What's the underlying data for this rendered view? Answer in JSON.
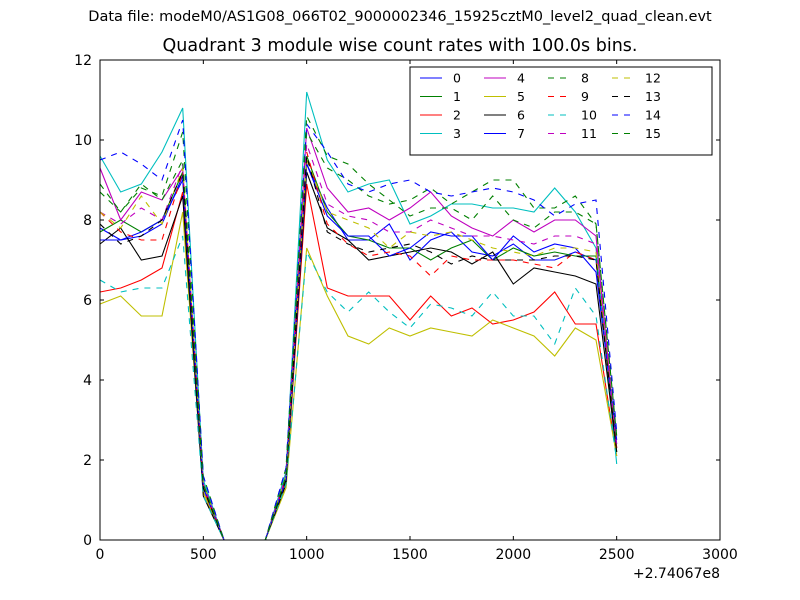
{
  "header": {
    "data_file": "Data file: modeM0/AS1G08_066T02_9000002346_15925cztM0_level2_quad_clean.evt",
    "title": "Quadrant 3 module wise count rates with 100.0s bins."
  },
  "chart_data": {
    "type": "line",
    "title": "Quadrant 3 module wise count rates with 100.0s bins.",
    "xlabel": "",
    "ylabel": "",
    "x_offset_label": "+2.74067e8",
    "xlim": [
      0,
      3000
    ],
    "ylim": [
      0,
      12
    ],
    "xticks": [
      0,
      500,
      1000,
      1500,
      2000,
      2500,
      3000
    ],
    "yticks": [
      0,
      2,
      4,
      6,
      8,
      10,
      12
    ],
    "grid": false,
    "legend_position": "top-right",
    "legend_columns": 4,
    "x": [
      0,
      100,
      200,
      300,
      400,
      500,
      600,
      700,
      800,
      900,
      1000,
      1100,
      1200,
      1300,
      1400,
      1500,
      1600,
      1700,
      1800,
      1900,
      2000,
      2100,
      2200,
      2300,
      2400,
      2500
    ],
    "series": [
      {
        "name": "0",
        "color": "#0000ff",
        "dash": "solid",
        "values": [
          7.8,
          7.5,
          7.6,
          7.9,
          9.1,
          1.3,
          0,
          0,
          0,
          1.5,
          9.4,
          8.3,
          7.5,
          7.5,
          7.9,
          7.0,
          7.5,
          7.7,
          7.2,
          7.1,
          7.4,
          7.0,
          7.0,
          7.2,
          7.0,
          2.4
        ]
      },
      {
        "name": "1",
        "color": "#008000",
        "dash": "solid",
        "values": [
          7.7,
          8.0,
          7.7,
          8.0,
          9.2,
          1.4,
          0,
          0,
          0,
          1.6,
          9.6,
          8.2,
          7.6,
          7.5,
          7.3,
          7.3,
          7.0,
          7.3,
          7.5,
          7.0,
          7.3,
          7.1,
          7.2,
          7.1,
          7.1,
          2.2
        ]
      },
      {
        "name": "2",
        "color": "#ff0000",
        "dash": "solid",
        "values": [
          6.2,
          6.3,
          6.5,
          6.8,
          8.7,
          1.2,
          0,
          0,
          0,
          1.4,
          8.9,
          6.3,
          6.1,
          6.1,
          6.1,
          5.5,
          6.1,
          5.6,
          5.8,
          5.4,
          5.5,
          5.7,
          6.2,
          5.4,
          5.4,
          2.1
        ]
      },
      {
        "name": "3",
        "color": "#00bfbf",
        "dash": "solid",
        "values": [
          9.6,
          8.7,
          8.9,
          9.7,
          10.8,
          1.5,
          0,
          0,
          0,
          1.7,
          11.2,
          9.5,
          8.7,
          8.9,
          9.0,
          7.9,
          8.1,
          8.4,
          8.4,
          8.3,
          8.3,
          8.2,
          8.8,
          8.2,
          7.3,
          1.9
        ]
      },
      {
        "name": "4",
        "color": "#bf00bf",
        "dash": "solid",
        "values": [
          9.3,
          8.0,
          8.7,
          8.5,
          9.3,
          1.4,
          0,
          0,
          0,
          1.6,
          10.3,
          8.8,
          8.2,
          8.3,
          8.0,
          8.3,
          8.7,
          8.1,
          7.8,
          7.6,
          8.0,
          7.7,
          8.0,
          8.0,
          7.6,
          2.3
        ]
      },
      {
        "name": "5",
        "color": "#bfbf00",
        "dash": "solid",
        "values": [
          5.9,
          6.1,
          5.6,
          5.6,
          8.2,
          1.2,
          0,
          0,
          0,
          1.3,
          7.3,
          6.1,
          5.1,
          4.9,
          5.3,
          5.1,
          5.3,
          5.2,
          5.1,
          5.5,
          5.3,
          5.1,
          4.6,
          5.3,
          5.0,
          2.1
        ]
      },
      {
        "name": "6",
        "color": "#000000",
        "dash": "solid",
        "values": [
          7.4,
          7.8,
          7.0,
          7.1,
          8.6,
          1.1,
          0,
          0,
          0,
          1.4,
          9.2,
          7.8,
          7.5,
          7.0,
          7.1,
          7.2,
          7.3,
          7.2,
          6.9,
          7.2,
          6.4,
          6.8,
          6.7,
          6.6,
          6.4,
          2.2
        ]
      },
      {
        "name": "7",
        "color": "#0000ff",
        "dash": "solid",
        "values": [
          7.5,
          7.5,
          7.7,
          8.0,
          9.0,
          1.3,
          0,
          0,
          0,
          1.5,
          9.4,
          8.1,
          7.6,
          7.6,
          7.1,
          7.3,
          7.7,
          7.6,
          7.6,
          7.0,
          7.6,
          7.2,
          7.4,
          7.3,
          6.7,
          2.5
        ]
      },
      {
        "name": "8",
        "color": "#008000",
        "dash": "dashed",
        "values": [
          8.7,
          8.2,
          8.8,
          8.6,
          10.2,
          1.6,
          0,
          0,
          0,
          1.8,
          10.2,
          9.3,
          9.0,
          8.6,
          8.4,
          8.5,
          8.8,
          8.4,
          8.7,
          9.0,
          9.0,
          8.3,
          8.3,
          8.6,
          7.9,
          2.6
        ]
      },
      {
        "name": "9",
        "color": "#ff0000",
        "dash": "dashed",
        "values": [
          8.2,
          7.7,
          7.5,
          7.5,
          9.2,
          1.3,
          0,
          0,
          0,
          1.5,
          9.7,
          7.9,
          7.4,
          7.1,
          7.2,
          7.1,
          6.6,
          7.1,
          7.0,
          7.0,
          7.0,
          6.9,
          6.8,
          7.2,
          7.0,
          2.3
        ]
      },
      {
        "name": "10",
        "color": "#00bfbf",
        "dash": "dashed",
        "values": [
          6.5,
          6.2,
          6.3,
          6.3,
          7.6,
          1.1,
          0,
          0,
          0,
          1.4,
          7.2,
          6.2,
          5.7,
          6.2,
          5.7,
          5.3,
          5.9,
          5.8,
          5.6,
          6.2,
          5.6,
          5.6,
          4.9,
          6.3,
          5.6,
          2.0
        ]
      },
      {
        "name": "11",
        "color": "#bf00bf",
        "dash": "dashed",
        "values": [
          8.2,
          7.9,
          8.3,
          8.0,
          9.4,
          1.4,
          0,
          0,
          0,
          1.6,
          9.9,
          8.4,
          8.1,
          8.0,
          7.7,
          7.7,
          8.0,
          7.8,
          7.6,
          7.6,
          7.5,
          7.4,
          7.6,
          7.6,
          7.4,
          2.3
        ]
      },
      {
        "name": "12",
        "color": "#bfbf00",
        "dash": "dashed",
        "values": [
          8.2,
          7.8,
          8.6,
          7.9,
          9.3,
          1.4,
          0,
          0,
          0,
          1.6,
          9.5,
          8.2,
          8.0,
          7.8,
          7.3,
          7.7,
          7.6,
          7.7,
          7.5,
          7.3,
          7.2,
          7.1,
          7.3,
          7.3,
          7.2,
          2.2
        ]
      },
      {
        "name": "13",
        "color": "#000000",
        "dash": "dashed",
        "values": [
          7.9,
          7.4,
          7.6,
          8.0,
          9.2,
          1.3,
          0,
          0,
          0,
          1.5,
          9.6,
          7.7,
          7.4,
          7.2,
          7.3,
          7.4,
          7.2,
          6.9,
          7.1,
          7.0,
          7.0,
          7.0,
          7.1,
          7.1,
          7.0,
          2.2
        ]
      },
      {
        "name": "14",
        "color": "#0000ff",
        "dash": "dashed",
        "values": [
          9.5,
          9.7,
          9.4,
          9.0,
          10.5,
          1.6,
          0,
          0,
          0,
          1.8,
          10.4,
          9.7,
          8.9,
          8.7,
          8.9,
          9.0,
          8.7,
          8.6,
          8.7,
          8.8,
          8.7,
          8.5,
          8.1,
          8.4,
          8.5,
          2.7
        ]
      },
      {
        "name": "15",
        "color": "#008000",
        "dash": "dashed",
        "values": [
          8.9,
          8.2,
          8.9,
          8.5,
          9.5,
          1.4,
          0,
          0,
          0,
          1.6,
          10.6,
          9.6,
          9.4,
          8.9,
          8.5,
          8.1,
          8.3,
          8.3,
          8.0,
          8.6,
          8.0,
          7.8,
          8.2,
          8.2,
          7.9,
          2.6
        ]
      }
    ]
  }
}
